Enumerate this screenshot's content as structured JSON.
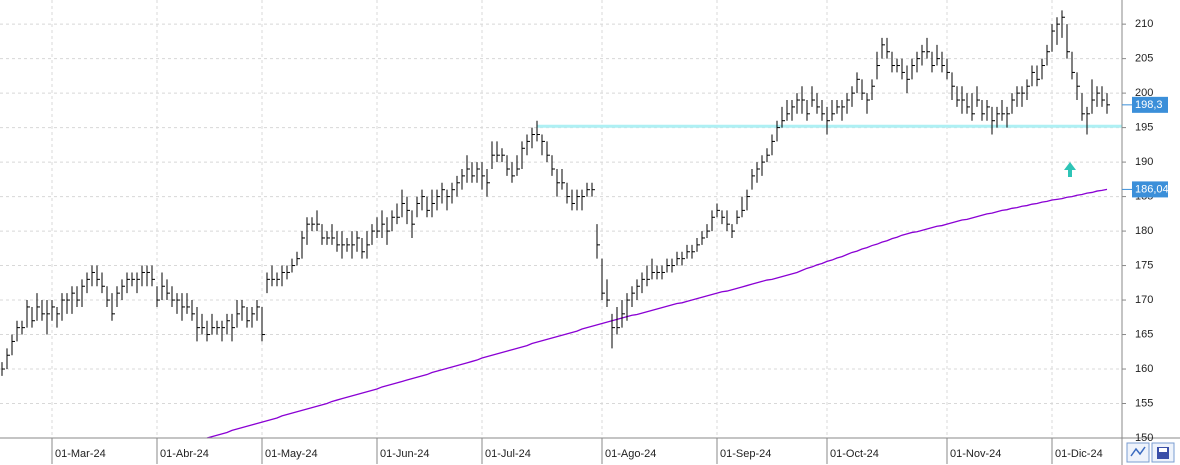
{
  "chart_data": {
    "type": "ohlc",
    "ylim": [
      150,
      213.5
    ],
    "yticks": [
      150,
      155,
      160,
      165,
      170,
      175,
      180,
      185,
      190,
      195,
      200,
      205,
      210
    ],
    "grid": true,
    "categories": [
      null,
      null,
      null,
      null,
      null,
      null,
      null,
      null,
      null,
      null,
      "01-Mar-24",
      null,
      null,
      null,
      null,
      null,
      null,
      null,
      null,
      null,
      null,
      null,
      null,
      null,
      null,
      null,
      null,
      null,
      null,
      null,
      null,
      "01-Abr-24",
      null,
      null,
      null,
      null,
      null,
      null,
      null,
      null,
      null,
      null,
      null,
      null,
      null,
      null,
      null,
      null,
      null,
      null,
      null,
      null,
      "01-May-24",
      null,
      null,
      null,
      null,
      null,
      null,
      null,
      null,
      null,
      null,
      null,
      null,
      null,
      null,
      null,
      null,
      null,
      null,
      null,
      null,
      null,
      null,
      "01-Jun-24",
      null,
      null,
      null,
      null,
      null,
      null,
      null,
      null,
      null,
      null,
      null,
      null,
      null,
      null,
      null,
      null,
      null,
      null,
      null,
      null,
      "01-Jul-24",
      null,
      null,
      null,
      null,
      null,
      null,
      null,
      null,
      null,
      null,
      null,
      null,
      null,
      null,
      null,
      null,
      null,
      null,
      null,
      null,
      null,
      null,
      null,
      "01-Ago-24",
      null,
      null,
      null,
      null,
      null,
      null,
      null,
      null,
      null,
      null,
      null,
      null,
      null,
      null,
      null,
      null,
      null,
      null,
      null,
      null,
      null,
      null,
      "01-Sep-24",
      null,
      null,
      null,
      null,
      null,
      null,
      null,
      null,
      null,
      null,
      null,
      null,
      null,
      null,
      null,
      null,
      null,
      null,
      null,
      null,
      null,
      "01-Oct-24",
      null,
      null,
      null,
      null,
      null,
      null,
      null,
      null,
      null,
      null,
      null,
      null,
      null,
      null,
      null,
      null,
      null,
      null,
      null,
      null,
      null,
      null,
      null,
      "01-Nov-24",
      null,
      null,
      null,
      null,
      null,
      null,
      null,
      null,
      null,
      null,
      null,
      null,
      null,
      null,
      null,
      null,
      null,
      null,
      null,
      null,
      "01-Dic-24",
      null,
      null,
      null,
      null,
      null,
      null,
      null,
      null,
      null,
      null,
      null
    ],
    "price": {
      "color": "#000000",
      "high": [
        161,
        163,
        165,
        167,
        167,
        170,
        169,
        171,
        170,
        170,
        170,
        169,
        171,
        171,
        172,
        172,
        173,
        174,
        175,
        175,
        174,
        172,
        171,
        172,
        173,
        174,
        174,
        174,
        175,
        175,
        175,
        172,
        174,
        173,
        172,
        171,
        171,
        171,
        170,
        169,
        168,
        167,
        168,
        167,
        167,
        168,
        168,
        170,
        170,
        169,
        169,
        170,
        169,
        174,
        175,
        174,
        175,
        175,
        176,
        177,
        180,
        182,
        182,
        183,
        181,
        180,
        181,
        180,
        180,
        179,
        180,
        180,
        179,
        180,
        181,
        182,
        183,
        182,
        183,
        184,
        186,
        185,
        183,
        185,
        186,
        185,
        186,
        186,
        187,
        186,
        187,
        188,
        189,
        191,
        190,
        190,
        190,
        189,
        193,
        193,
        192,
        191,
        190,
        191,
        193,
        194,
        195,
        196,
        194,
        193,
        191,
        189,
        189,
        187,
        186,
        186,
        186,
        187,
        187,
        181,
        176,
        173,
        168,
        169,
        170,
        171,
        172,
        173,
        174,
        175,
        176,
        175,
        175,
        176,
        176,
        177,
        177,
        178,
        178,
        179,
        180,
        181,
        183,
        184,
        183,
        183,
        181,
        183,
        185,
        186,
        189,
        190,
        191,
        192,
        194,
        196,
        198,
        199,
        199,
        200,
        201,
        199,
        201,
        200,
        199,
        198,
        199,
        199,
        199,
        200,
        201,
        203,
        202,
        200,
        202,
        206,
        208,
        208,
        206,
        205,
        205,
        204,
        205,
        206,
        207,
        208,
        206,
        207,
        206,
        205,
        203,
        201,
        201,
        200,
        200,
        201,
        199,
        199,
        198,
        198,
        199,
        198,
        200,
        201,
        201,
        202,
        204,
        204,
        205,
        207,
        210,
        211,
        212,
        210,
        206,
        203,
        200,
        198,
        202,
        201,
        201,
        200
      ],
      "low": [
        159,
        160,
        162,
        164,
        165,
        166,
        166,
        167,
        167,
        165,
        167,
        166,
        167,
        168,
        168,
        169,
        169,
        171,
        172,
        172,
        171,
        169,
        167,
        169,
        170,
        171,
        172,
        171,
        172,
        172,
        172,
        169,
        170,
        170,
        169,
        168,
        167,
        168,
        167,
        164,
        165,
        164,
        165,
        165,
        164,
        165,
        164,
        166,
        167,
        166,
        166,
        167,
        164,
        171,
        172,
        172,
        172,
        173,
        174,
        175,
        176,
        178,
        180,
        180,
        178,
        178,
        178,
        177,
        176,
        177,
        176,
        177,
        176,
        176,
        178,
        179,
        179,
        178,
        180,
        181,
        182,
        181,
        179,
        182,
        183,
        182,
        182,
        183,
        184,
        183,
        184,
        185,
        186,
        187,
        187,
        187,
        186,
        185,
        189,
        190,
        190,
        188,
        187,
        188,
        189,
        191,
        192,
        193,
        191,
        190,
        188,
        185,
        186,
        184,
        183,
        183,
        183,
        185,
        185,
        176,
        170,
        169,
        163,
        165,
        166,
        167,
        169,
        170,
        171,
        172,
        173,
        173,
        173,
        174,
        174,
        175,
        175,
        176,
        176,
        177,
        178,
        179,
        180,
        182,
        181,
        180,
        179,
        181,
        182,
        183,
        186,
        187,
        188,
        190,
        191,
        193,
        195,
        196,
        196,
        197,
        197,
        196,
        198,
        197,
        196,
        194,
        196,
        197,
        196,
        197,
        198,
        200,
        199,
        197,
        199,
        202,
        205,
        205,
        203,
        203,
        202,
        200,
        202,
        203,
        204,
        205,
        203,
        204,
        203,
        202,
        199,
        198,
        197,
        197,
        196,
        198,
        196,
        196,
        194,
        195,
        196,
        195,
        197,
        198,
        198,
        199,
        201,
        201,
        202,
        204,
        206,
        207,
        208,
        205,
        202,
        199,
        196,
        194,
        197,
        198,
        198,
        197
      ],
      "close": [
        160,
        162,
        164,
        166,
        166,
        169,
        167,
        169,
        168,
        168,
        169,
        168,
        170,
        170,
        171,
        170,
        172,
        173,
        174,
        173,
        172,
        170,
        168,
        171,
        172,
        173,
        173,
        173,
        174,
        174,
        173,
        170,
        172,
        171,
        170,
        170,
        169,
        169,
        168,
        166,
        166,
        165,
        166,
        166,
        166,
        167,
        166,
        168,
        169,
        167,
        168,
        169,
        165,
        173,
        173,
        173,
        174,
        174,
        175,
        176,
        179,
        181,
        181,
        181,
        179,
        179,
        179,
        178,
        178,
        178,
        178,
        179,
        177,
        178,
        180,
        180,
        181,
        180,
        182,
        182,
        184,
        183,
        181,
        184,
        185,
        183,
        184,
        185,
        186,
        185,
        186,
        187,
        188,
        189,
        188,
        189,
        188,
        187,
        191,
        191,
        191,
        189,
        188,
        189,
        192,
        193,
        194,
        194,
        193,
        191,
        189,
        187,
        187,
        185,
        184,
        185,
        185,
        186,
        186,
        178,
        171,
        170,
        166,
        166,
        168,
        170,
        171,
        172,
        173,
        173,
        174,
        174,
        174,
        175,
        175,
        176,
        176,
        177,
        177,
        178,
        179,
        180,
        182,
        183,
        182,
        181,
        180,
        182,
        183,
        185,
        188,
        189,
        190,
        191,
        193,
        195,
        196,
        197,
        198,
        199,
        199,
        197,
        199,
        198,
        197,
        196,
        197,
        198,
        198,
        199,
        200,
        202,
        200,
        199,
        201,
        204,
        207,
        206,
        204,
        204,
        203,
        202,
        204,
        205,
        206,
        206,
        204,
        205,
        204,
        203,
        201,
        199,
        199,
        198,
        197,
        199,
        197,
        198,
        196,
        197,
        197,
        197,
        199,
        200,
        200,
        201,
        203,
        202,
        204,
        206,
        209,
        210,
        211,
        206,
        203,
        201,
        197,
        197,
        199,
        200,
        199,
        198.3
      ],
      "last_label": {
        "value": 198.3,
        "label": "198,3"
      }
    },
    "ma": {
      "color": "#8a00d4",
      "values": [
        null,
        null,
        null,
        null,
        null,
        null,
        null,
        null,
        null,
        null,
        null,
        null,
        null,
        null,
        null,
        null,
        null,
        null,
        null,
        null,
        null,
        null,
        null,
        null,
        null,
        null,
        null,
        null,
        null,
        null,
        null,
        null,
        null,
        null,
        null,
        null,
        null,
        null,
        null,
        null,
        null,
        150.0,
        150.2,
        150.4,
        150.6,
        150.8,
        151.1,
        151.3,
        151.5,
        151.7,
        151.9,
        152.1,
        152.3,
        152.5,
        152.7,
        152.9,
        153.2,
        153.4,
        153.6,
        153.8,
        154.0,
        154.2,
        154.4,
        154.6,
        154.8,
        155.0,
        155.3,
        155.5,
        155.7,
        155.9,
        156.1,
        156.3,
        156.5,
        156.7,
        156.9,
        157.1,
        157.4,
        157.6,
        157.8,
        158.0,
        158.2,
        158.4,
        158.6,
        158.8,
        159.0,
        159.2,
        159.5,
        159.7,
        159.9,
        160.1,
        160.3,
        160.5,
        160.7,
        160.9,
        161.1,
        161.3,
        161.6,
        161.8,
        162.0,
        162.2,
        162.4,
        162.6,
        162.8,
        163.0,
        163.2,
        163.4,
        163.7,
        163.9,
        164.1,
        164.3,
        164.5,
        164.7,
        164.9,
        165.1,
        165.3,
        165.5,
        165.8,
        166.0,
        166.2,
        166.4,
        166.6,
        166.8,
        167.0,
        167.2,
        167.4,
        167.6,
        167.8,
        167.9,
        168.1,
        168.3,
        168.5,
        168.7,
        168.9,
        169.1,
        169.3,
        169.5,
        169.6,
        169.8,
        170.0,
        170.2,
        170.4,
        170.6,
        170.8,
        171.0,
        171.2,
        171.3,
        171.5,
        171.7,
        171.9,
        172.1,
        172.3,
        172.5,
        172.7,
        172.9,
        173.0,
        173.2,
        173.4,
        173.6,
        173.8,
        174.0,
        174.3,
        174.6,
        174.8,
        175.1,
        175.3,
        175.6,
        175.8,
        176.1,
        176.3,
        176.6,
        176.9,
        177.1,
        177.4,
        177.6,
        177.9,
        178.1,
        178.4,
        178.6,
        178.9,
        179.1,
        179.4,
        179.6,
        179.8,
        179.9,
        180.1,
        180.3,
        180.5,
        180.7,
        180.8,
        181.0,
        181.2,
        181.4,
        181.6,
        181.7,
        181.9,
        182.1,
        182.3,
        182.5,
        182.6,
        182.8,
        183.0,
        183.1,
        183.3,
        183.4,
        183.6,
        183.7,
        183.9,
        184.0,
        184.2,
        184.3,
        184.5,
        184.6,
        184.7,
        184.9,
        185.0,
        185.2,
        185.3,
        185.5,
        185.6,
        185.8,
        185.9,
        186.04
      ],
      "last_label": {
        "value": 186.04,
        "label": "186,04"
      }
    },
    "hline": {
      "value": 195.2,
      "color": "#aef0f4"
    }
  }
}
